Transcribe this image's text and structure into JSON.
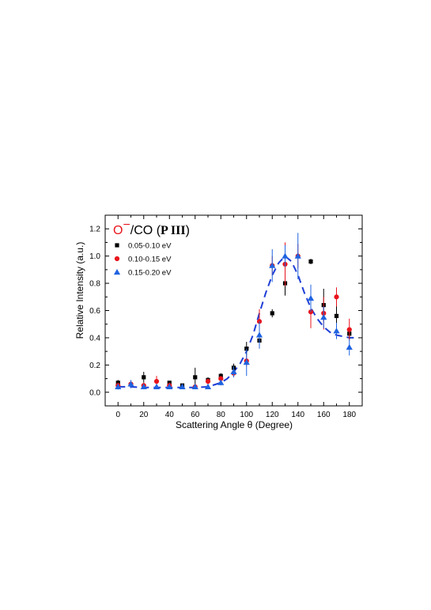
{
  "chart_data": {
    "type": "scatter",
    "title_prefix": "O",
    "title_superscript": "−",
    "title_suffix": "/CO (",
    "title_bold": "P III",
    "title_close": ")",
    "xlabel": "Scattering Angle θ (Degree)",
    "ylabel": "Relative Intensity (a.u.)",
    "xlim": [
      -10,
      190
    ],
    "ylim": [
      -0.1,
      1.3
    ],
    "xticks": [
      0,
      20,
      40,
      60,
      80,
      100,
      120,
      140,
      160,
      180
    ],
    "yticks": [
      0.0,
      0.2,
      0.4,
      0.6,
      0.8,
      1.0,
      1.2
    ],
    "ytick_labels": [
      "0.0",
      "0.2",
      "0.4",
      "0.6",
      "0.8",
      "1.0",
      "1.2"
    ],
    "legend_position": "top-left",
    "series": [
      {
        "name": "0.05-0.10 eV",
        "marker": "square",
        "color": "#000000",
        "points": [
          {
            "x": 0,
            "y": 0.07,
            "err": 0.02
          },
          {
            "x": 20,
            "y": 0.11,
            "err": 0.04
          },
          {
            "x": 40,
            "y": 0.07,
            "err": 0.01
          },
          {
            "x": 50,
            "y": 0.05,
            "err": 0.01
          },
          {
            "x": 60,
            "y": 0.11,
            "err": 0.07
          },
          {
            "x": 70,
            "y": 0.09,
            "err": 0.02
          },
          {
            "x": 80,
            "y": 0.12,
            "err": 0.02
          },
          {
            "x": 90,
            "y": 0.18,
            "err": 0.03
          },
          {
            "x": 100,
            "y": 0.32,
            "err": 0.05
          },
          {
            "x": 110,
            "y": 0.38,
            "err": 0.02
          },
          {
            "x": 120,
            "y": 0.58,
            "err": 0.03
          },
          {
            "x": 130,
            "y": 0.8,
            "err": 0.09
          },
          {
            "x": 150,
            "y": 0.96,
            "err": 0.02
          },
          {
            "x": 160,
            "y": 0.64,
            "err": 0.12
          },
          {
            "x": 170,
            "y": 0.56,
            "err": 0.08
          },
          {
            "x": 180,
            "y": 0.43,
            "err": 0.04
          }
        ]
      },
      {
        "name": "0.10-0.15 eV",
        "marker": "circle",
        "color": "#e8141c",
        "points": [
          {
            "x": 0,
            "y": 0.05,
            "err": 0.02
          },
          {
            "x": 10,
            "y": 0.06,
            "err": 0.02
          },
          {
            "x": 20,
            "y": 0.05,
            "err": 0.02
          },
          {
            "x": 30,
            "y": 0.08,
            "err": 0.04
          },
          {
            "x": 40,
            "y": 0.05,
            "err": 0.02
          },
          {
            "x": 60,
            "y": 0.04,
            "err": 0.01
          },
          {
            "x": 70,
            "y": 0.08,
            "err": 0.02
          },
          {
            "x": 80,
            "y": 0.1,
            "err": 0.02
          },
          {
            "x": 90,
            "y": 0.14,
            "err": 0.03
          },
          {
            "x": 100,
            "y": 0.23,
            "err": 0.04
          },
          {
            "x": 110,
            "y": 0.52,
            "err": 0.09
          },
          {
            "x": 120,
            "y": 0.93,
            "err": 0.07
          },
          {
            "x": 130,
            "y": 0.94,
            "err": 0.16
          },
          {
            "x": 140,
            "y": 1.0,
            "err": 0.09
          },
          {
            "x": 150,
            "y": 0.59,
            "err": 0.12
          },
          {
            "x": 160,
            "y": 0.58,
            "err": 0.12
          },
          {
            "x": 170,
            "y": 0.7,
            "err": 0.07
          },
          {
            "x": 180,
            "y": 0.46,
            "err": 0.08
          }
        ]
      },
      {
        "name": "0.15-0.20 eV",
        "marker": "triangle",
        "color": "#1f63e0",
        "points": [
          {
            "x": 0,
            "y": 0.04,
            "err": 0.02
          },
          {
            "x": 10,
            "y": 0.06,
            "err": 0.03
          },
          {
            "x": 20,
            "y": 0.04,
            "err": 0.01
          },
          {
            "x": 30,
            "y": 0.04,
            "err": 0.01
          },
          {
            "x": 40,
            "y": 0.04,
            "err": 0.01
          },
          {
            "x": 50,
            "y": 0.04,
            "err": 0.01
          },
          {
            "x": 60,
            "y": 0.04,
            "err": 0.01
          },
          {
            "x": 70,
            "y": 0.04,
            "err": 0.01
          },
          {
            "x": 80,
            "y": 0.07,
            "err": 0.02
          },
          {
            "x": 90,
            "y": 0.15,
            "err": 0.04
          },
          {
            "x": 100,
            "y": 0.22,
            "err": 0.1
          },
          {
            "x": 110,
            "y": 0.42,
            "err": 0.1
          },
          {
            "x": 120,
            "y": 0.93,
            "err": 0.12
          },
          {
            "x": 130,
            "y": 1.0,
            "err": 0.08
          },
          {
            "x": 140,
            "y": 1.0,
            "err": 0.17
          },
          {
            "x": 150,
            "y": 0.69,
            "err": 0.1
          },
          {
            "x": 160,
            "y": 0.55,
            "err": 0.08
          },
          {
            "x": 170,
            "y": 0.45,
            "err": 0.06
          },
          {
            "x": 180,
            "y": 0.33,
            "err": 0.06
          }
        ]
      }
    ],
    "fit_curve": {
      "style": "dashed",
      "color": "#1f3fd6",
      "x": [
        0,
        10,
        20,
        30,
        40,
        50,
        60,
        70,
        80,
        85,
        90,
        95,
        100,
        105,
        110,
        115,
        120,
        125,
        130,
        135,
        140,
        145,
        150,
        155,
        160,
        165,
        170,
        175,
        180,
        185
      ],
      "y": [
        0.04,
        0.04,
        0.035,
        0.035,
        0.035,
        0.035,
        0.035,
        0.04,
        0.07,
        0.1,
        0.15,
        0.21,
        0.3,
        0.42,
        0.58,
        0.73,
        0.86,
        0.95,
        1.0,
        0.96,
        0.86,
        0.73,
        0.62,
        0.54,
        0.48,
        0.44,
        0.42,
        0.41,
        0.4,
        0.4
      ]
    }
  }
}
